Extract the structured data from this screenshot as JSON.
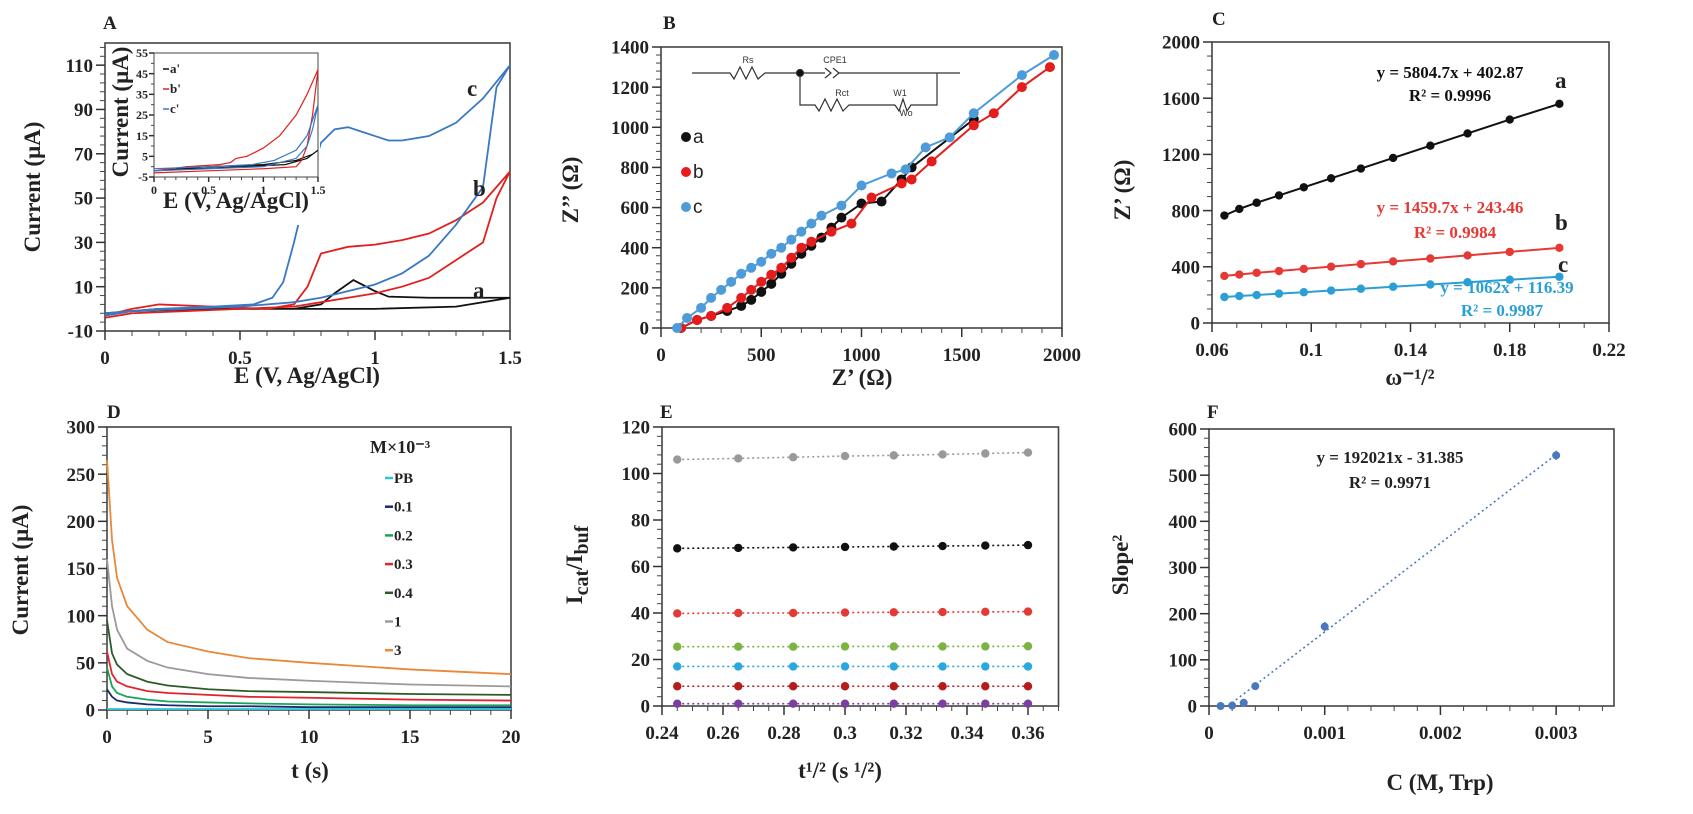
{
  "chart_data": [
    {
      "panel_label": "A",
      "type": "line",
      "xlabel": "E (V, Ag/AgCl)",
      "ylabel": "Current (μA)",
      "xlim": [
        0,
        1.5
      ],
      "ylim": [
        -10,
        120
      ],
      "x_ticks": [
        "0",
        "0.5",
        "1",
        "1.5"
      ],
      "y_ticks": [
        "-10",
        "10",
        "30",
        "50",
        "70",
        "90",
        "110"
      ],
      "series": [
        {
          "name": "a",
          "color": "#111111",
          "x": [
            0,
            0.2,
            0.4,
            0.6,
            0.7,
            0.8,
            0.85,
            0.92,
            1.0,
            1.05,
            1.2,
            1.4,
            1.5,
            1.3,
            1.0,
            0.7,
            0.4,
            0.1,
            0
          ],
          "y": [
            -2,
            0,
            0,
            0,
            0,
            2,
            7,
            13,
            8,
            5.5,
            5,
            5,
            5,
            1,
            0,
            0,
            0,
            -1,
            -3
          ]
        },
        {
          "name": "b",
          "color": "#e0201e",
          "x": [
            0,
            0.1,
            0.2,
            0.4,
            0.6,
            0.7,
            0.75,
            0.8,
            0.9,
            1.0,
            1.1,
            1.2,
            1.3,
            1.4,
            1.5,
            1.45,
            1.4,
            1.3,
            1.2,
            1.1,
            1.0,
            0.9,
            0.8,
            0.7,
            0.5,
            0.3,
            0.1,
            0
          ],
          "y": [
            -3,
            0,
            2,
            1,
            0,
            2,
            10,
            25,
            28,
            29,
            31,
            34,
            40,
            48,
            62,
            50,
            30,
            22,
            14,
            10,
            7,
            5,
            3,
            1,
            0,
            -1,
            -2,
            -4
          ]
        },
        {
          "name": "c",
          "color": "#3a78c2",
          "x": [
            0,
            0.2,
            0.4,
            0.55,
            0.62,
            0.66,
            0.7,
            0.75,
            0.8,
            0.85,
            0.9,
            0.95,
            1.0,
            1.05,
            1.1,
            1.2,
            1.3,
            1.4,
            1.5,
            1.45,
            1.4,
            1.3,
            1.2,
            1.1,
            1.0,
            0.9,
            0.8,
            0.7,
            0.5,
            0.3,
            0.1,
            0
          ],
          "y": [
            -2,
            0,
            1,
            2,
            5,
            12,
            30,
            55,
            75,
            81,
            82,
            80,
            78,
            76,
            76,
            78,
            84,
            95,
            110,
            100,
            55,
            38,
            24,
            16,
            11,
            8,
            5,
            3,
            1,
            0,
            -1,
            -3
          ]
        }
      ],
      "annotations": [
        {
          "text": "a",
          "color": "#111111"
        },
        {
          "text": "b",
          "color": "#e0201e"
        },
        {
          "text": "c",
          "color": "#1f74b5"
        }
      ]
    },
    {
      "panel_label": "",
      "type": "line",
      "xlabel": "E (V, Ag/AgCl)",
      "ylabel": "Current (μA)",
      "xlim": [
        0,
        1.5
      ],
      "ylim": [
        -5,
        55
      ],
      "x_ticks": [
        "0",
        "0.5",
        "1",
        "1.5"
      ],
      "y_ticks": [
        "-5",
        "5",
        "15",
        "25",
        "35",
        "45",
        "55"
      ],
      "legend": [
        "a'",
        "b'",
        "c'"
      ],
      "series": [
        {
          "name": "a'",
          "color": "#111111",
          "x": [
            0,
            0.5,
            1.0,
            1.3,
            1.45,
            1.5,
            1.4,
            1.2,
            0.8,
            0.4,
            0
          ],
          "y": [
            -2,
            0,
            1,
            3,
            6,
            8,
            4,
            1,
            0,
            -1,
            -2
          ]
        },
        {
          "name": "b'",
          "color": "#e0201e",
          "x": [
            0,
            0.3,
            0.6,
            0.7,
            0.75,
            0.85,
            1.0,
            1.15,
            1.3,
            1.4,
            1.5,
            1.45,
            1.4,
            1.35,
            1.3,
            1.0,
            0.5,
            0
          ],
          "y": [
            -2,
            0,
            1,
            2,
            4,
            5,
            9,
            15,
            25,
            35,
            47,
            25,
            10,
            3,
            0,
            -1,
            -2,
            -3
          ]
        },
        {
          "name": "c'",
          "color": "#3a78c2",
          "x": [
            0,
            0.5,
            0.9,
            1.1,
            1.3,
            1.4,
            1.5,
            1.45,
            1.4,
            1.3,
            1.0,
            0.5,
            0
          ],
          "y": [
            -1,
            0,
            1,
            3,
            8,
            15,
            30,
            18,
            10,
            4,
            0,
            -1,
            -2
          ]
        }
      ]
    },
    {
      "panel_label": "B",
      "type": "scatter",
      "xlabel": "Z’ (Ω)",
      "ylabel": "Z’’ (Ω)",
      "xlim": [
        0,
        2000
      ],
      "ylim": [
        0,
        1400
      ],
      "x_ticks": [
        "0",
        "500",
        "1000",
        "1500",
        "2000"
      ],
      "y_ticks": [
        "0",
        "200",
        "400",
        "600",
        "800",
        "1000",
        "1200",
        "1400"
      ],
      "legend": [
        "a",
        "b",
        "c"
      ],
      "circuit": {
        "rs": "Rs",
        "cpe": "CPE1",
        "rct": "Rct",
        "w": "W1",
        "w_sub": "Wo"
      },
      "series": [
        {
          "name": "a",
          "color": "#111111",
          "x": [
            100,
            180,
            250,
            330,
            400,
            450,
            500,
            550,
            600,
            650,
            700,
            750,
            800,
            850,
            900,
            1000,
            1100,
            1200,
            1250,
            1560
          ],
          "y": [
            0,
            40,
            60,
            85,
            110,
            140,
            180,
            220,
            270,
            320,
            370,
            410,
            450,
            500,
            550,
            620,
            630,
            740,
            800,
            1040
          ]
        },
        {
          "name": "b",
          "color": "#e51c1c",
          "x": [
            100,
            180,
            250,
            330,
            400,
            450,
            500,
            550,
            600,
            650,
            700,
            750,
            850,
            950,
            1050,
            1200,
            1250,
            1350,
            1560,
            1660,
            1800,
            1940
          ],
          "y": [
            0,
            40,
            60,
            100,
            150,
            190,
            230,
            265,
            300,
            350,
            400,
            430,
            480,
            520,
            650,
            720,
            740,
            830,
            1010,
            1070,
            1200,
            1300
          ]
        },
        {
          "name": "c",
          "color": "#4d9bd9",
          "x": [
            80,
            130,
            200,
            250,
            300,
            350,
            400,
            450,
            500,
            550,
            600,
            650,
            700,
            750,
            800,
            900,
            1000,
            1150,
            1220,
            1320,
            1440,
            1560,
            1800,
            1960
          ],
          "y": [
            0,
            50,
            100,
            150,
            190,
            230,
            270,
            300,
            330,
            370,
            400,
            440,
            480,
            520,
            560,
            610,
            710,
            770,
            790,
            900,
            950,
            1070,
            1260,
            1360
          ]
        }
      ]
    },
    {
      "panel_label": "C",
      "type": "scatter",
      "xlabel": "ω⁻¹/²",
      "ylabel": "Z’ (Ω)",
      "xlim": [
        0.06,
        0.22
      ],
      "ylim": [
        0,
        2000
      ],
      "x_ticks": [
        "0.06",
        "0.1",
        "0.14",
        "0.18",
        "0.22"
      ],
      "y_ticks": [
        "0",
        "400",
        "800",
        "1200",
        "1600",
        "2000"
      ],
      "series": [
        {
          "name": "a",
          "color": "#111111",
          "equation": "y = 5804.7x + 402.87",
          "r2": "R² = 0.9996",
          "x": [
            0.065,
            0.071,
            0.078,
            0.087,
            0.097,
            0.108,
            0.12,
            0.133,
            0.148,
            0.163,
            0.18,
            0.2
          ],
          "y": [
            765,
            812,
            856,
            908,
            966,
            1030,
            1099,
            1175,
            1262,
            1349,
            1448,
            1560
          ]
        },
        {
          "name": "b",
          "color": "#e53935",
          "equation": "y = 1459.7x + 243.46",
          "r2": "R² = 0.9984",
          "x": [
            0.065,
            0.071,
            0.078,
            0.087,
            0.097,
            0.108,
            0.12,
            0.133,
            0.148,
            0.163,
            0.18,
            0.2
          ],
          "y": [
            335,
            345,
            357,
            370,
            385,
            401,
            419,
            438,
            459,
            481,
            506,
            535
          ]
        },
        {
          "name": "c",
          "color": "#2a9fd6",
          "equation": "y = 1062x + 116.39",
          "r2": "R² = 0.9987",
          "x": [
            0.065,
            0.071,
            0.078,
            0.087,
            0.097,
            0.108,
            0.12,
            0.133,
            0.148,
            0.163,
            0.18,
            0.2
          ],
          "y": [
            185,
            192,
            199,
            209,
            219,
            231,
            244,
            258,
            274,
            290,
            308,
            329
          ]
        }
      ]
    },
    {
      "panel_label": "D",
      "type": "line",
      "xlabel": "t (s)",
      "ylabel": "Current (μA)",
      "xlim": [
        0,
        20
      ],
      "ylim": [
        0,
        300
      ],
      "x_ticks": [
        "0",
        "5",
        "10",
        "15",
        "20"
      ],
      "y_ticks": [
        "0",
        "50",
        "100",
        "150",
        "200",
        "250",
        "300"
      ],
      "legend_title": "M×10⁻³",
      "series": [
        {
          "name": "PB",
          "color": "#2ec4d6",
          "x": [
            0,
            0.25,
            0.5,
            1,
            2,
            3,
            5,
            7,
            10,
            15,
            20
          ],
          "y": [
            1,
            1,
            1,
            1,
            1,
            1,
            1,
            1,
            1,
            1,
            1
          ]
        },
        {
          "name": "0.1",
          "color": "#1a2a6c",
          "x": [
            0,
            0.25,
            0.5,
            1,
            2,
            3,
            5,
            7,
            10,
            15,
            20
          ],
          "y": [
            22,
            14,
            10,
            8,
            6,
            5,
            4,
            4,
            3,
            3,
            3
          ]
        },
        {
          "name": "0.2",
          "color": "#1aa35a",
          "x": [
            0,
            0.25,
            0.5,
            1,
            2,
            3,
            5,
            7,
            10,
            15,
            20
          ],
          "y": [
            45,
            25,
            18,
            14,
            11,
            9,
            8,
            7,
            6,
            5,
            5
          ]
        },
        {
          "name": "0.3",
          "color": "#e0242b",
          "x": [
            0,
            0.25,
            0.5,
            1,
            2,
            3,
            5,
            7,
            10,
            15,
            20
          ],
          "y": [
            62,
            38,
            30,
            25,
            20,
            18,
            16,
            14,
            13,
            11,
            10
          ]
        },
        {
          "name": "0.4",
          "color": "#2e5a2a",
          "x": [
            0,
            0.25,
            0.5,
            1,
            2,
            3,
            5,
            7,
            10,
            15,
            20
          ],
          "y": [
            95,
            60,
            48,
            38,
            30,
            26,
            22,
            20,
            19,
            17,
            16
          ]
        },
        {
          "name": "1",
          "color": "#9a9a9a",
          "x": [
            0,
            0.25,
            0.5,
            1,
            2,
            3,
            5,
            7,
            10,
            15,
            20
          ],
          "y": [
            160,
            110,
            85,
            65,
            52,
            45,
            38,
            34,
            31,
            27,
            25
          ]
        },
        {
          "name": "3",
          "color": "#e8883a",
          "x": [
            0,
            0.25,
            0.5,
            1,
            2,
            3,
            5,
            7,
            10,
            15,
            20
          ],
          "y": [
            265,
            180,
            140,
            110,
            85,
            72,
            62,
            55,
            50,
            43,
            38
          ]
        }
      ]
    },
    {
      "panel_label": "E",
      "type": "scatter",
      "xlabel": "t¹/² (s ¹/²)",
      "ylabel_parts": [
        "I",
        "cat",
        "/I",
        "buf"
      ],
      "xlim": [
        0.24,
        0.37
      ],
      "ylim": [
        0,
        120
      ],
      "x_ticks": [
        "0.24",
        "0.26",
        "0.28",
        "0.3",
        "0.32",
        "0.34",
        "0.36"
      ],
      "y_ticks": [
        "0",
        "20",
        "40",
        "60",
        "80",
        "100",
        "120"
      ],
      "series": [
        {
          "color": "#999999",
          "x": [
            0.245,
            0.265,
            0.283,
            0.3,
            0.316,
            0.332,
            0.346,
            0.36
          ],
          "y": [
            106,
            106.5,
            107,
            107.5,
            107.8,
            108.2,
            108.6,
            109
          ]
        },
        {
          "color": "#111111",
          "x": [
            0.245,
            0.265,
            0.283,
            0.3,
            0.316,
            0.332,
            0.346,
            0.36
          ],
          "y": [
            67.8,
            68,
            68.2,
            68.4,
            68.6,
            68.8,
            69,
            69.2
          ]
        },
        {
          "color": "#e53935",
          "x": [
            0.245,
            0.265,
            0.283,
            0.3,
            0.316,
            0.332,
            0.346,
            0.36
          ],
          "y": [
            39.8,
            40,
            40,
            40.2,
            40.3,
            40.4,
            40.5,
            40.6
          ]
        },
        {
          "color": "#7cb342",
          "x": [
            0.245,
            0.265,
            0.283,
            0.3,
            0.316,
            0.332,
            0.346,
            0.36
          ],
          "y": [
            25.5,
            25.5,
            25.5,
            25.6,
            25.6,
            25.6,
            25.6,
            25.7
          ]
        },
        {
          "color": "#29a8e0",
          "x": [
            0.245,
            0.265,
            0.283,
            0.3,
            0.316,
            0.332,
            0.346,
            0.36
          ],
          "y": [
            17,
            17,
            17,
            17,
            17,
            17,
            17,
            17
          ]
        },
        {
          "color": "#b71c1c",
          "x": [
            0.245,
            0.265,
            0.283,
            0.3,
            0.316,
            0.332,
            0.346,
            0.36
          ],
          "y": [
            8.5,
            8.5,
            8.5,
            8.5,
            8.5,
            8.5,
            8.5,
            8.5
          ]
        },
        {
          "color": "#7b3fa0",
          "x": [
            0.245,
            0.265,
            0.283,
            0.3,
            0.316,
            0.332,
            0.346,
            0.36
          ],
          "y": [
            1,
            1,
            1,
            1,
            1,
            1,
            1,
            1
          ]
        }
      ]
    },
    {
      "panel_label": "F",
      "type": "scatter",
      "xlabel": "C (M, Trp)",
      "ylabel": "Slope²",
      "xlim": [
        0,
        0.0035
      ],
      "ylim": [
        0,
        600
      ],
      "x_ticks": [
        "0",
        "0.001",
        "0.002",
        "0.003"
      ],
      "y_ticks": [
        "0",
        "100",
        "200",
        "300",
        "400",
        "500",
        "600"
      ],
      "equation": "y = 192021x - 31.385",
      "r2": "R² = 0.9971",
      "fit": {
        "slope": 192021,
        "intercept": -31.385
      },
      "series": [
        {
          "color": "#4a78c0",
          "x": [
            0.0001,
            0.0002,
            0.0003,
            0.0004,
            0.001,
            0.003
          ],
          "y": [
            0,
            1,
            7,
            43,
            172,
            543
          ],
          "error": [
            2,
            3,
            4,
            6,
            10,
            10
          ]
        }
      ]
    }
  ]
}
